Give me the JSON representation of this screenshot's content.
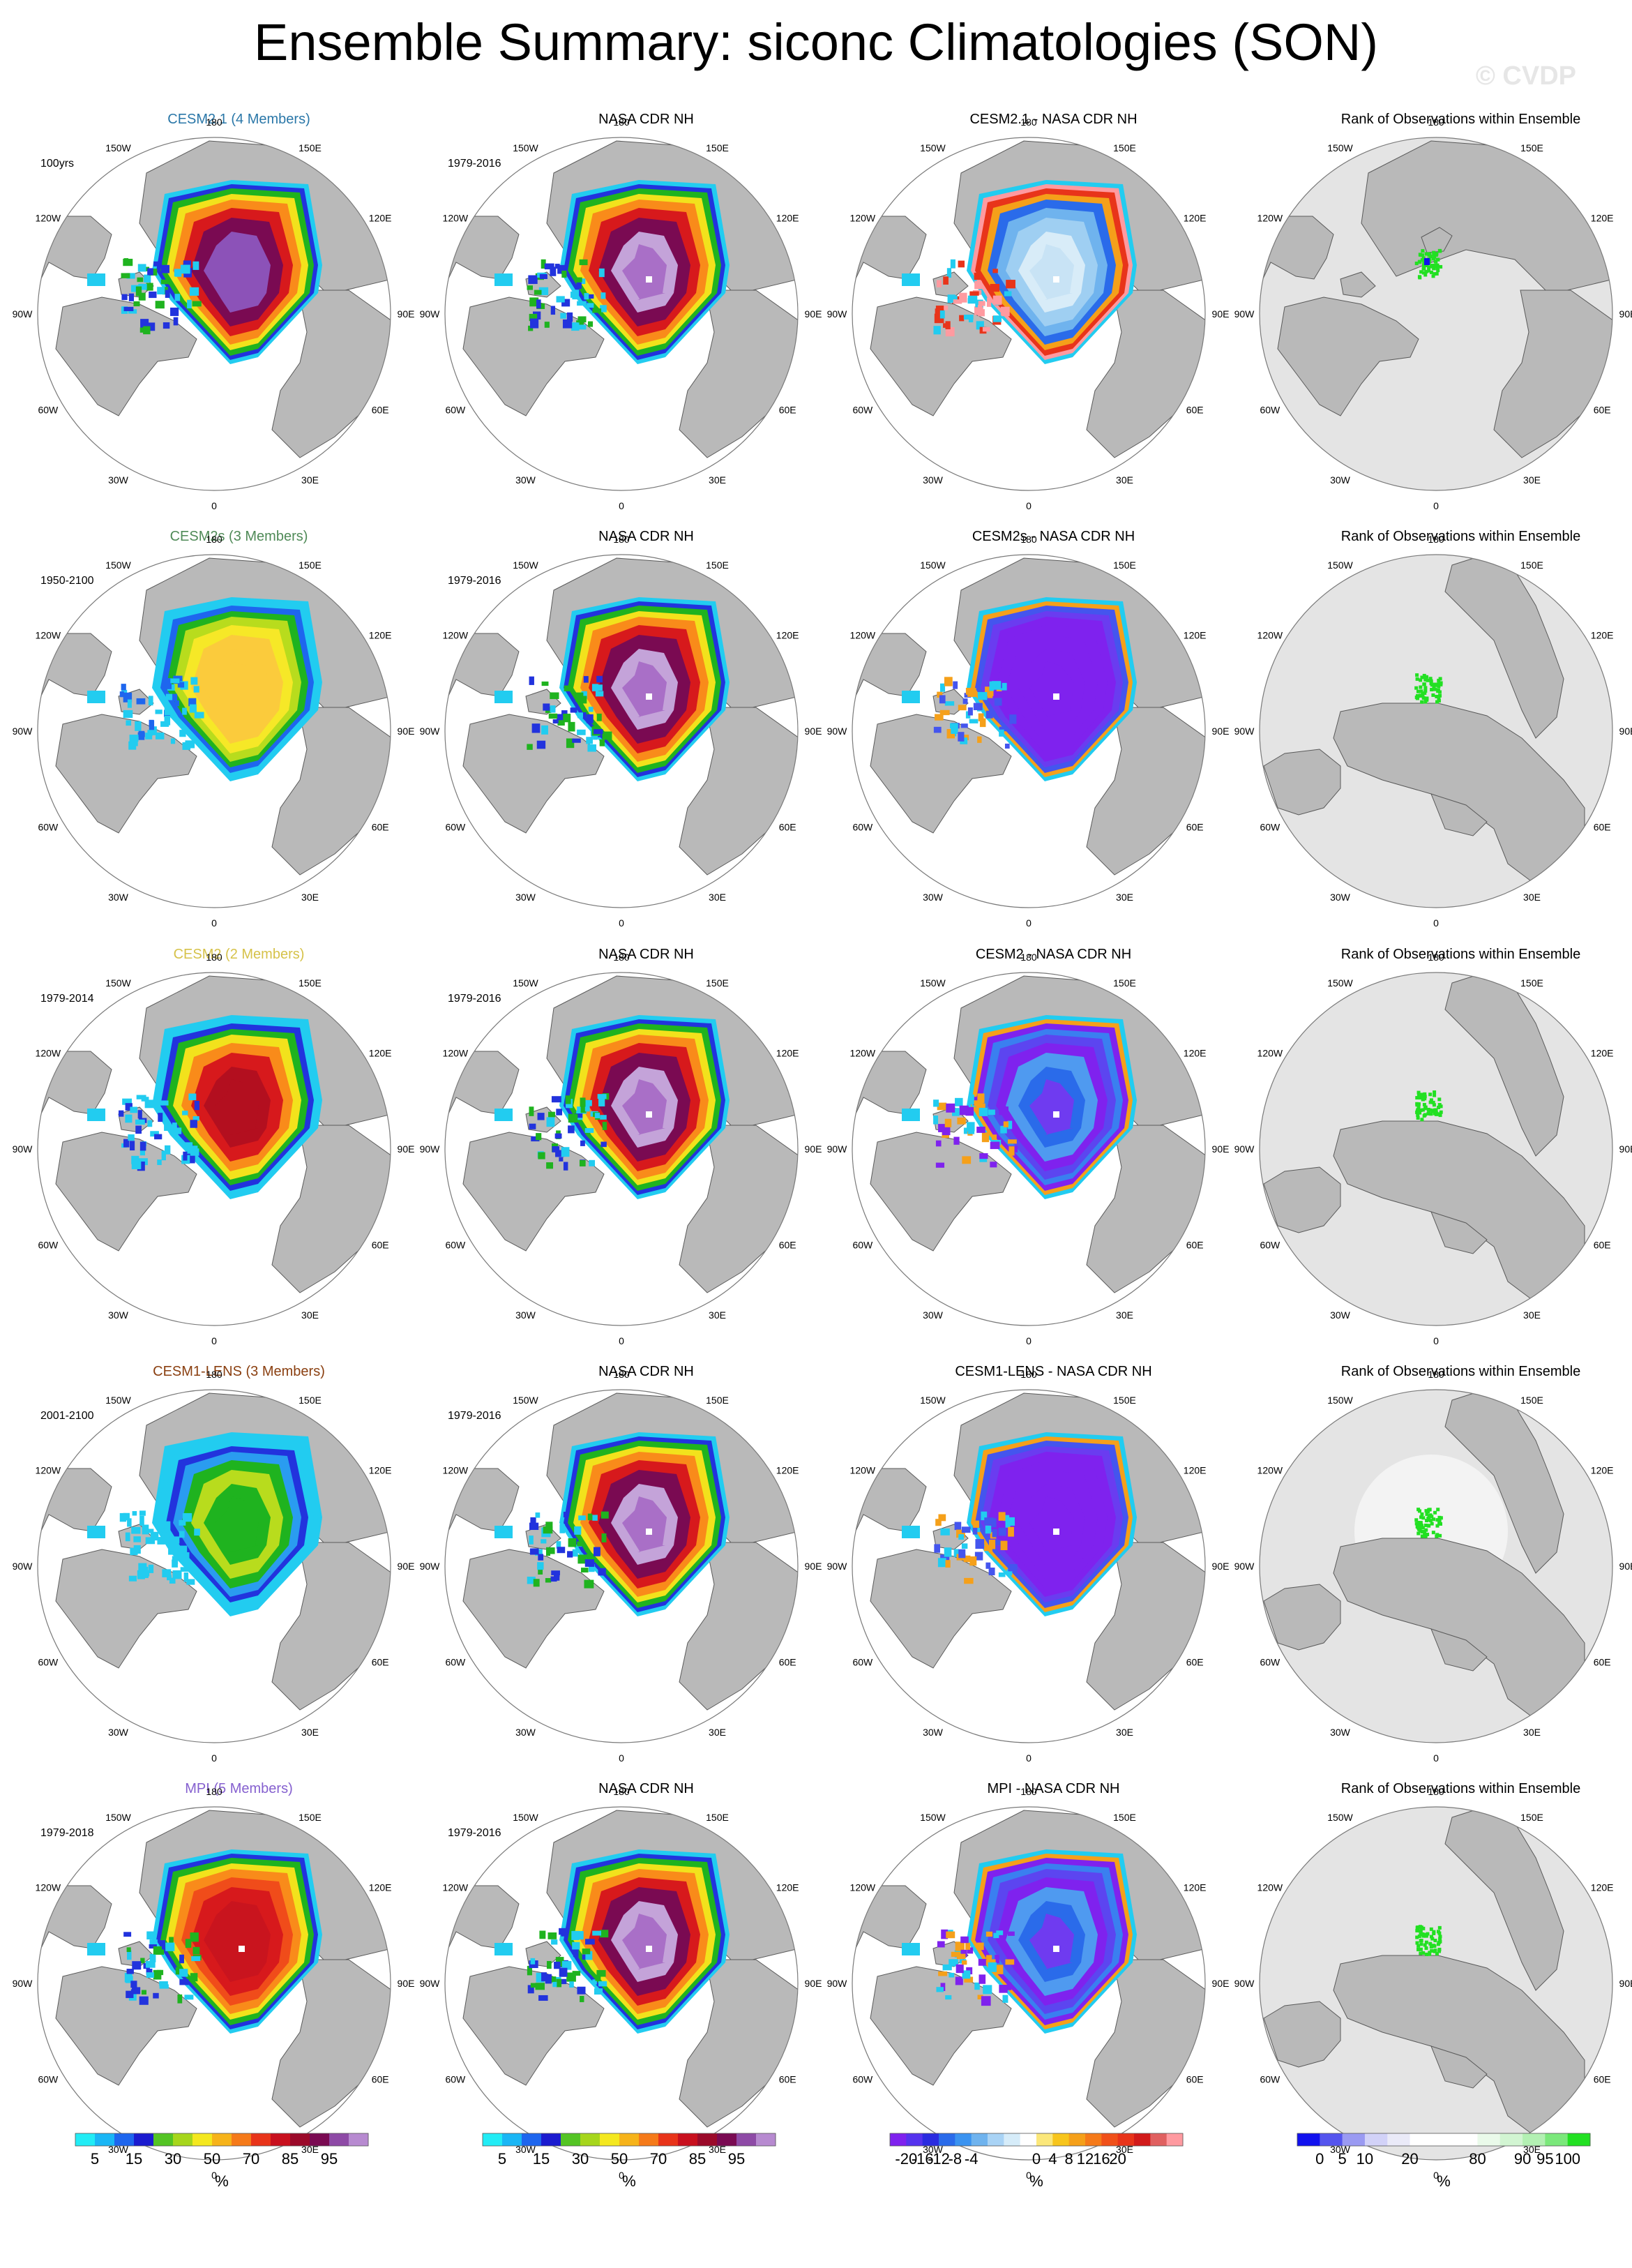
{
  "title": "Ensemble Summary: siconc Climatologies (SON)",
  "watermark": "© CVDP",
  "lon_labels": [
    "180",
    "150E",
    "120E",
    "90E",
    "60E",
    "30E",
    "0",
    "30W",
    "60W",
    "90W",
    "120W",
    "150W"
  ],
  "colors": {
    "land": "#b9b9b9",
    "land_edge": "#5a5a5a",
    "rank_bg": "#e4e4e4",
    "title_cesm21": "#2a77a8",
    "title_cesm2s": "#4f8a57",
    "title_cesm2": "#d6c24a",
    "title_cesm1": "#8a3f10",
    "title_mpi": "#8560cf"
  },
  "rows": [
    {
      "model": {
        "title": "CESM2.1 (4 Members)",
        "period": "100yrs",
        "color_key": "title_cesm21",
        "scheme": "model_cesm21"
      },
      "obs": {
        "title": "NASA CDR NH",
        "period": "1979-2016"
      },
      "diff": {
        "title": "CESM2.1 - NASA CDR NH",
        "scheme": "diff_mixed"
      },
      "rank": {
        "title": "Rank of Observations within Ensemble",
        "view": "wide",
        "halo": false
      }
    },
    {
      "model": {
        "title": "CESM2s (3 Members)",
        "period": "1950-2100",
        "color_key": "title_cesm2s",
        "scheme": "model_cesm2s"
      },
      "obs": {
        "title": "NASA CDR NH",
        "period": "1979-2016"
      },
      "diff": {
        "title": "CESM2s - NASA CDR NH",
        "scheme": "diff_violet"
      },
      "rank": {
        "title": "Rank of Observations within Ensemble",
        "view": "rotated",
        "halo": false
      }
    },
    {
      "model": {
        "title": "CESM2 (2 Members)",
        "period": "1979-2014",
        "color_key": "title_cesm2",
        "scheme": "model_cesm2"
      },
      "obs": {
        "title": "NASA CDR NH",
        "period": "1979-2016"
      },
      "diff": {
        "title": "CESM2 - NASA CDR NH",
        "scheme": "diff_blue"
      },
      "rank": {
        "title": "Rank of Observations within Ensemble",
        "view": "rotated",
        "halo": false
      }
    },
    {
      "model": {
        "title": "CESM1-LENS (3 Members)",
        "period": "2001-2100",
        "color_key": "title_cesm1",
        "scheme": "model_cesm1"
      },
      "obs": {
        "title": "NASA CDR NH",
        "period": "1979-2016"
      },
      "diff": {
        "title": "CESM1-LENS - NASA CDR NH",
        "scheme": "diff_violet"
      },
      "rank": {
        "title": "Rank of Observations within Ensemble",
        "view": "rotated",
        "halo": true
      }
    },
    {
      "model": {
        "title": "MPI (5 Members)",
        "period": "1979-2018",
        "color_key": "title_mpi",
        "scheme": "model_mpi"
      },
      "obs": {
        "title": "NASA CDR NH",
        "period": "1979-2016"
      },
      "diff": {
        "title": "MPI - NASA CDR NH",
        "scheme": "diff_blue"
      },
      "rank": {
        "title": "Rank of Observations within Ensemble",
        "view": "rotated",
        "halo": false
      }
    }
  ],
  "schemes": {
    "obs": [
      "#a96fc7",
      "#c4a3d9",
      "#7a0a52",
      "#d7191c",
      "#f98b1a",
      "#f2e21c",
      "#1fb31f",
      "#2233dd",
      "#22ccf0"
    ],
    "model_cesm21": [
      "#8c52b8",
      "#8c52b8",
      "#7a0a52",
      "#d7191c",
      "#f98b1a",
      "#f2e21c",
      "#1fb31f",
      "#2233dd",
      "#22ccf0"
    ],
    "model_cesm2s": [
      "#fbcb3c",
      "#fbcb3c",
      "#fbcb3c",
      "#f6e827",
      "#b8dc1d",
      "#1fb31f",
      "#1e66ee",
      "#22ccf0",
      "#22ccf0"
    ],
    "model_cesm2": [
      "#b30f1f",
      "#b30f1f",
      "#d7191c",
      "#f98b1a",
      "#f2e21c",
      "#1fb31f",
      "#2233dd",
      "#22ccf0",
      "#22ccf0"
    ],
    "model_cesm1": [
      "#1fb31f",
      "#1fb31f",
      "#b8dc1d",
      "#1fb31f",
      "#2a9cf0",
      "#2233dd",
      "#22ccf0",
      "#22ccf0",
      "#22ccf0"
    ],
    "model_mpi": [
      "#c9141e",
      "#c9141e",
      "#d7191c",
      "#f04c1a",
      "#f98b1a",
      "#f2e21c",
      "#1fb31f",
      "#2233dd",
      "#22ccf0"
    ],
    "diff_mixed": [
      "#c8e3f5",
      "#d8ecf8",
      "#9fcff2",
      "#6fb3ee",
      "#2a6bea",
      "#f5a01a",
      "#e8341a",
      "#ff9aa0",
      "#22ccf0"
    ],
    "diff_violet": [
      "#7f22ee",
      "#7f22ee",
      "#7f22ee",
      "#7f22ee",
      "#7f22ee",
      "#6a3cf0",
      "#4455ee",
      "#f5a01a",
      "#22ccf0"
    ],
    "diff_blue": [
      "#6f3bf0",
      "#2a6bea",
      "#4f9af0",
      "#7f22ee",
      "#5c45f0",
      "#3a7ff0",
      "#7f22ee",
      "#f5a01a",
      "#22ccf0"
    ]
  },
  "colorbars": [
    {
      "colors": [
        "#22ecf5",
        "#1ab6f5",
        "#1e66ee",
        "#1b1bcf",
        "#54c424",
        "#a6d61c",
        "#f4e81f",
        "#f6b31a",
        "#f57a1a",
        "#e8341a",
        "#c8101e",
        "#9b0a2a",
        "#7a0a52",
        "#8e4aa6",
        "#b78ad0"
      ],
      "labels": [
        {
          "text": "5",
          "at": 1
        },
        {
          "text": "15",
          "at": 3
        },
        {
          "text": "30",
          "at": 5
        },
        {
          "text": "50",
          "at": 7
        },
        {
          "text": "70",
          "at": 9
        },
        {
          "text": "85",
          "at": 11
        },
        {
          "text": "95",
          "at": 13
        }
      ],
      "unit": "%"
    },
    {
      "colors": [
        "#22ecf5",
        "#1ab6f5",
        "#1e66ee",
        "#1b1bcf",
        "#54c424",
        "#a6d61c",
        "#f4e81f",
        "#f6b31a",
        "#f57a1a",
        "#e8341a",
        "#c8101e",
        "#9b0a2a",
        "#7a0a52",
        "#8e4aa6",
        "#b78ad0"
      ],
      "labels": [
        {
          "text": "5",
          "at": 1
        },
        {
          "text": "15",
          "at": 3
        },
        {
          "text": "30",
          "at": 5
        },
        {
          "text": "50",
          "at": 7
        },
        {
          "text": "70",
          "at": 9
        },
        {
          "text": "85",
          "at": 11
        },
        {
          "text": "95",
          "at": 13
        }
      ],
      "unit": "%"
    },
    {
      "colors": [
        "#7f22ee",
        "#5533ee",
        "#2a2ce0",
        "#2a6bea",
        "#3b93f0",
        "#6fb3ee",
        "#a9d3f5",
        "#d6ecf9",
        "#ffffff",
        "#fbe77a",
        "#f7c51c",
        "#f5a01a",
        "#f57a1a",
        "#f0501a",
        "#e8341a",
        "#d11a1a",
        "#e06060",
        "#ff9aa0"
      ],
      "labels": [
        {
          "text": "-20",
          "at": 1
        },
        {
          "text": "-16",
          "at": 2
        },
        {
          "text": "-12",
          "at": 3
        },
        {
          "text": "-8",
          "at": 4
        },
        {
          "text": "-4",
          "at": 5
        },
        {
          "text": "0",
          "at": 9
        },
        {
          "text": "4",
          "at": 10
        },
        {
          "text": "8",
          "at": 11
        },
        {
          "text": "12",
          "at": 12
        },
        {
          "text": "16",
          "at": 13
        },
        {
          "text": "20",
          "at": 14
        }
      ],
      "unit": "%"
    },
    {
      "colors": [
        "#1111ee",
        "#5555ee",
        "#9a9af2",
        "#d2d2f8",
        "#eaeaf8",
        "#ffffff",
        "#ffffff",
        "#ffffff",
        "#eafaea",
        "#d2f5d2",
        "#b3f0b3",
        "#7be87b",
        "#22e022"
      ],
      "labels": [
        {
          "text": "0",
          "at": 1
        },
        {
          "text": "5",
          "at": 2
        },
        {
          "text": "10",
          "at": 3
        },
        {
          "text": "20",
          "at": 5
        },
        {
          "text": "80",
          "at": 8
        },
        {
          "text": "90",
          "at": 10
        },
        {
          "text": "95",
          "at": 11
        },
        {
          "text": "100",
          "at": 12
        }
      ],
      "unit": "%"
    }
  ]
}
